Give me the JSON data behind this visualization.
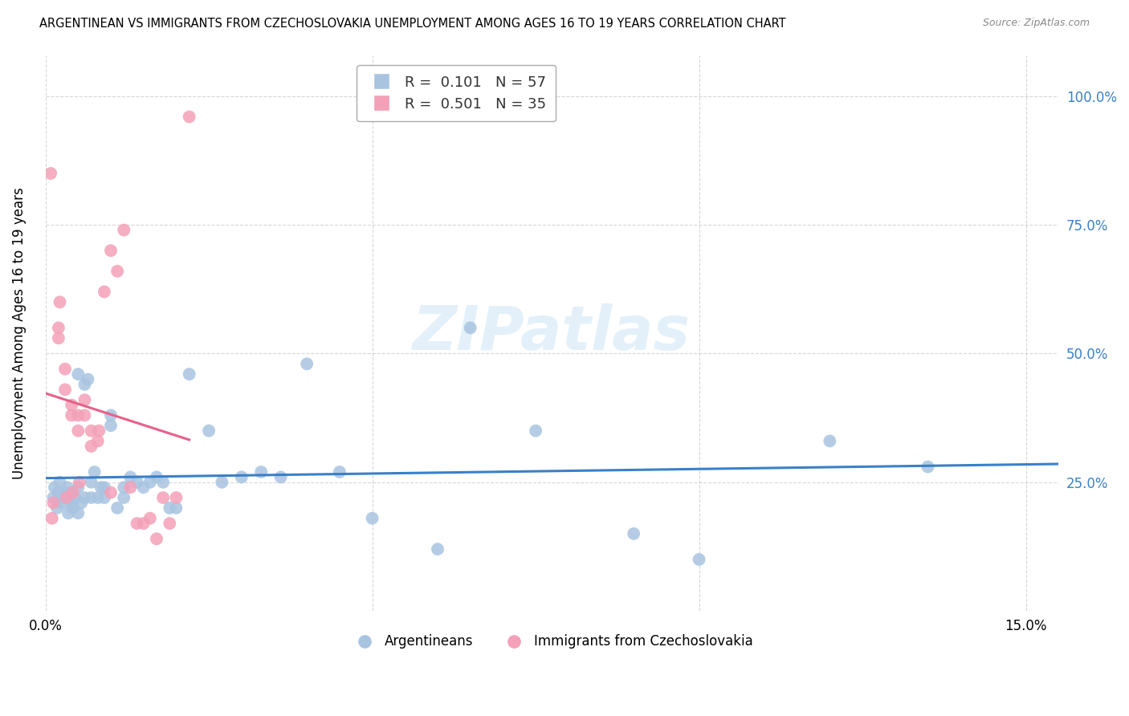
{
  "title": "ARGENTINEAN VS IMMIGRANTS FROM CZECHOSLOVAKIA UNEMPLOYMENT AMONG AGES 16 TO 19 YEARS CORRELATION CHART",
  "source": "Source: ZipAtlas.com",
  "ylabel": "Unemployment Among Ages 16 to 19 years",
  "blue_scatter_color": "#a8c4e0",
  "pink_scatter_color": "#f4a0b8",
  "blue_line_color": "#3a80c8",
  "pink_line_color": "#e8608a",
  "tick_color": "#3a80c8",
  "R_blue": 0.101,
  "N_blue": 57,
  "R_pink": 0.501,
  "N_pink": 35,
  "watermark": "ZIPatlas",
  "legend_label_blue": "Argentineans",
  "legend_label_pink": "Immigrants from Czechoslovakia",
  "blue_scatter_x": [
    0.0012,
    0.0014,
    0.0018,
    0.002,
    0.0022,
    0.0025,
    0.003,
    0.003,
    0.0033,
    0.0035,
    0.004,
    0.004,
    0.0042,
    0.0045,
    0.005,
    0.005,
    0.005,
    0.0055,
    0.006,
    0.006,
    0.0065,
    0.007,
    0.007,
    0.0075,
    0.008,
    0.0085,
    0.009,
    0.009,
    0.01,
    0.01,
    0.011,
    0.012,
    0.012,
    0.013,
    0.014,
    0.015,
    0.016,
    0.017,
    0.018,
    0.019,
    0.02,
    0.022,
    0.025,
    0.027,
    0.03,
    0.033,
    0.036,
    0.04,
    0.045,
    0.05,
    0.06,
    0.065,
    0.075,
    0.09,
    0.1,
    0.12,
    0.135
  ],
  "blue_scatter_y": [
    0.22,
    0.24,
    0.2,
    0.23,
    0.25,
    0.21,
    0.22,
    0.23,
    0.24,
    0.19,
    0.21,
    0.23,
    0.2,
    0.22,
    0.24,
    0.46,
    0.19,
    0.21,
    0.22,
    0.44,
    0.45,
    0.22,
    0.25,
    0.27,
    0.22,
    0.24,
    0.22,
    0.24,
    0.36,
    0.38,
    0.2,
    0.22,
    0.24,
    0.26,
    0.25,
    0.24,
    0.25,
    0.26,
    0.25,
    0.2,
    0.2,
    0.46,
    0.35,
    0.25,
    0.26,
    0.27,
    0.26,
    0.48,
    0.27,
    0.18,
    0.12,
    0.55,
    0.35,
    0.15,
    0.1,
    0.33,
    0.28
  ],
  "pink_scatter_x": [
    0.0008,
    0.001,
    0.0012,
    0.002,
    0.002,
    0.0022,
    0.003,
    0.003,
    0.0032,
    0.004,
    0.004,
    0.0042,
    0.005,
    0.005,
    0.0052,
    0.006,
    0.006,
    0.007,
    0.007,
    0.008,
    0.0082,
    0.009,
    0.01,
    0.01,
    0.011,
    0.012,
    0.013,
    0.014,
    0.015,
    0.016,
    0.017,
    0.018,
    0.019,
    0.02,
    0.022
  ],
  "pink_scatter_y": [
    0.85,
    0.18,
    0.21,
    0.53,
    0.55,
    0.6,
    0.43,
    0.47,
    0.22,
    0.38,
    0.4,
    0.23,
    0.35,
    0.38,
    0.25,
    0.38,
    0.41,
    0.32,
    0.35,
    0.33,
    0.35,
    0.62,
    0.7,
    0.23,
    0.66,
    0.74,
    0.24,
    0.17,
    0.17,
    0.18,
    0.14,
    0.22,
    0.17,
    0.22,
    0.96
  ]
}
